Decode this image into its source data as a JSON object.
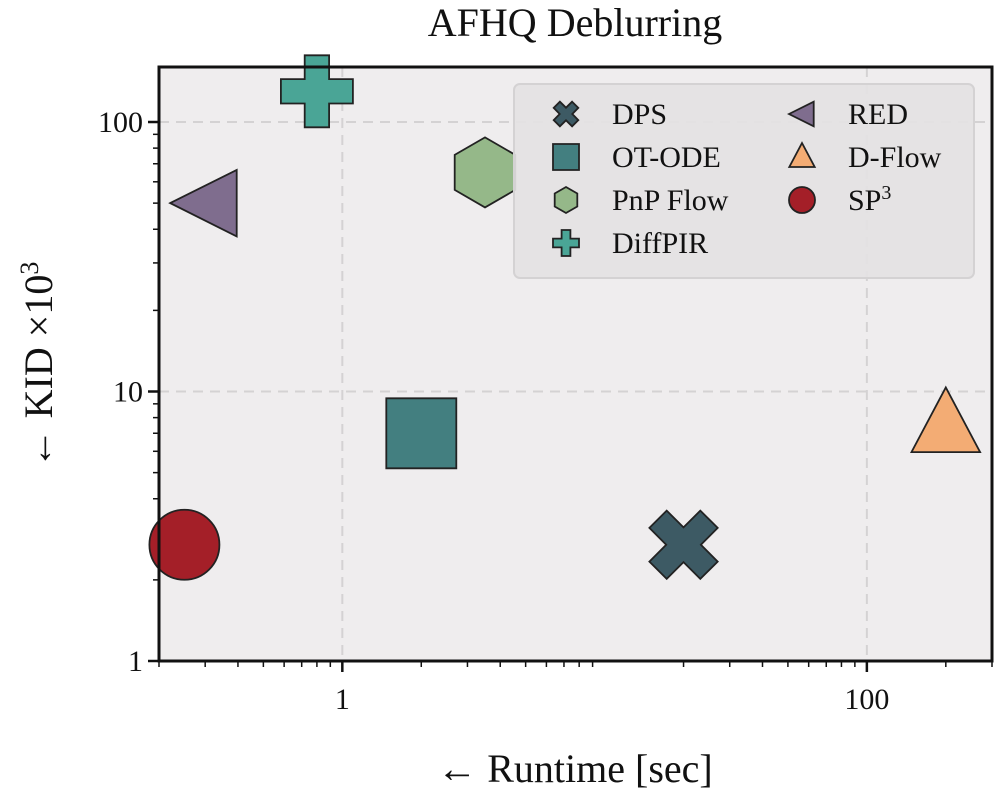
{
  "chart_data": {
    "type": "scatter",
    "title": "AFHQ Deblurring",
    "xlabel": "← Runtime [sec]",
    "ylabel": "← KID ×10",
    "ylabel_superscript": "3",
    "x_scale": "log",
    "y_scale": "log",
    "xlim": [
      0.2,
      300
    ],
    "ylim": [
      1,
      160
    ],
    "x_ticks": [
      {
        "value": 1,
        "label": "1"
      },
      {
        "value": 100,
        "label": "100"
      }
    ],
    "y_ticks": [
      {
        "value": 1,
        "label": "1"
      },
      {
        "value": 10,
        "label": "10"
      },
      {
        "value": 100,
        "label": "100"
      }
    ],
    "grid": true,
    "legend_position": "top-right",
    "series": [
      {
        "name": "DPS",
        "marker": "x",
        "color": "#3d5a64",
        "x": 20,
        "y": 2.7
      },
      {
        "name": "OT-ODE",
        "marker": "square",
        "color": "#437f80",
        "x": 2,
        "y": 7
      },
      {
        "name": "PnP Flow",
        "marker": "hexagon",
        "color": "#95b889",
        "x": 3.5,
        "y": 65
      },
      {
        "name": "DiffPIR",
        "marker": "plus",
        "color": "#4aa596",
        "x": 0.8,
        "y": 130
      },
      {
        "name": "RED",
        "marker": "triangle-left",
        "color": "#7f6d8e",
        "x": 0.3,
        "y": 50
      },
      {
        "name": "D-Flow",
        "marker": "triangle-up",
        "color": "#f3ac74",
        "x": 200,
        "y": 7.5
      },
      {
        "name": "SP",
        "name_superscript": "3",
        "marker": "circle",
        "color": "#a41f28",
        "x": 0.25,
        "y": 2.7
      }
    ]
  }
}
